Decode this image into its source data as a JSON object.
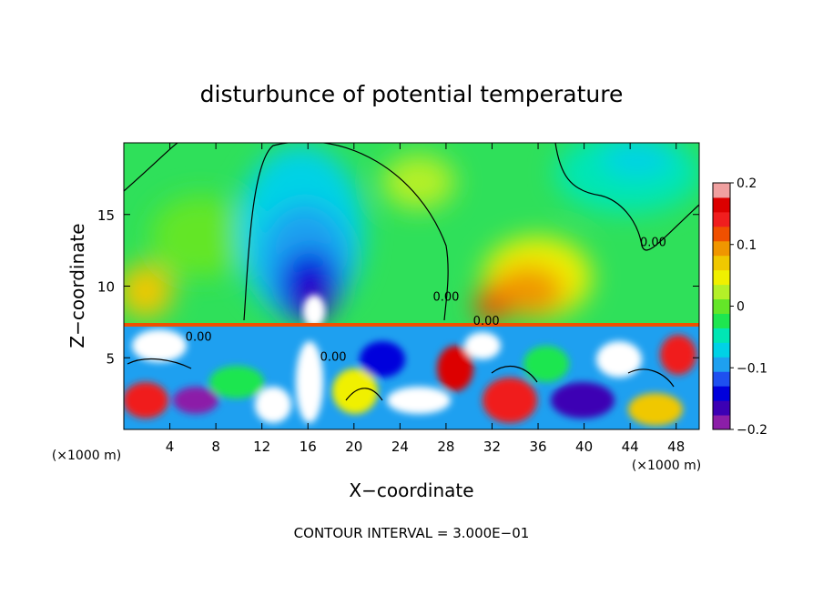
{
  "chart_data": {
    "type": "heatmap",
    "title": "disturbunce of potential temperature",
    "xlabel": "X−coordinate",
    "ylabel": "Z−coordinate",
    "x_unit_left": "(×1000 m)",
    "x_unit_right": "(×1000 m)",
    "footer": "CONTOUR INTERVAL = 3.000E−01",
    "xlim": [
      0,
      50
    ],
    "ylim": [
      0,
      20
    ],
    "x_ticks": [
      4,
      8,
      12,
      16,
      20,
      24,
      28,
      32,
      36,
      40,
      44,
      48
    ],
    "y_ticks": [
      5,
      10,
      15
    ],
    "colorbar": {
      "min": -0.2,
      "max": 0.2,
      "ticks": [
        0.2,
        0.1,
        0,
        -0.1,
        -0.2
      ],
      "tick_labels": [
        "0.2",
        "0.1",
        "0",
        "−0.1",
        "−0.2"
      ],
      "colors": [
        "#8c1ea8",
        "#3c00b4",
        "#0000dc",
        "#1e50f0",
        "#1ea0f0",
        "#00d2e6",
        "#00e6b4",
        "#1ee650",
        "#64e628",
        "#b4f028",
        "#f0f000",
        "#f0c800",
        "#f09600",
        "#f05000",
        "#f01e1e",
        "#dc0000",
        "#f0a0a0"
      ]
    },
    "contour_labels": [
      {
        "text": "0.00",
        "x": 46,
        "y": 12.8
      },
      {
        "text": "0.00",
        "x": 28,
        "y": 9.0
      },
      {
        "text": "0.00",
        "x": 31.5,
        "y": 7.3
      },
      {
        "text": "0.00",
        "x": 6.5,
        "y": 6.2
      },
      {
        "text": "0.00",
        "x": 18.2,
        "y": 4.8
      }
    ]
  }
}
